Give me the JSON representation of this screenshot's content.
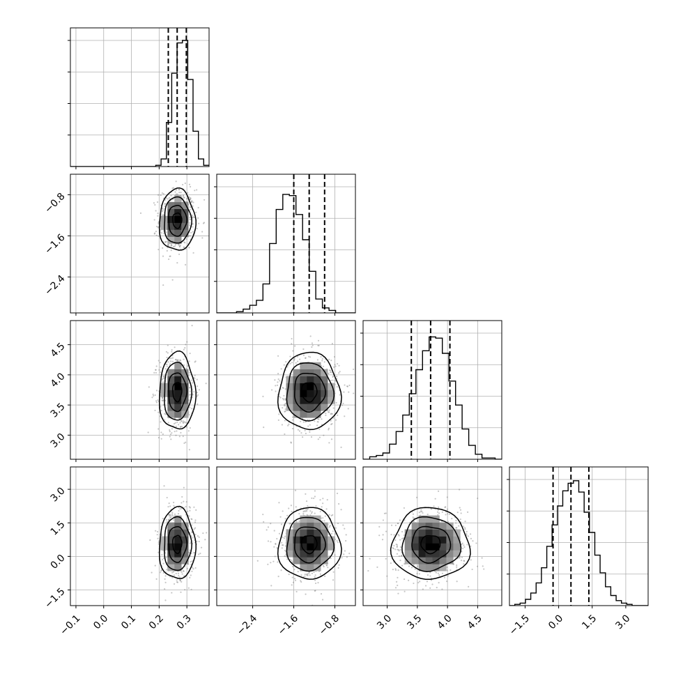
{
  "chart_data": {
    "type": "corner",
    "title": "",
    "grid": true,
    "colors": {
      "line": "#000000",
      "grid": "#b0b0b0",
      "scatter": "#808080",
      "density_max": "#000000"
    },
    "parameters": [
      {
        "index": 0,
        "range": [
          -0.12,
          0.38
        ],
        "ticks": [
          -0.1,
          0.0,
          0.1,
          0.2,
          0.3
        ],
        "tick_labels": [
          "−0.1",
          "0.0",
          "0.1",
          "0.2",
          "0.3"
        ],
        "median": 0.265,
        "q16": 0.233,
        "q84": 0.298
      },
      {
        "index": 1,
        "range": [
          -3.1,
          -0.4
        ],
        "ticks": [
          -2.4,
          -1.6,
          -0.8
        ],
        "tick_labels": [
          "−2.4",
          "−1.6",
          "−0.8"
        ],
        "median": -1.3,
        "q16": -1.6,
        "q84": -1.0
      },
      {
        "index": 2,
        "range": [
          2.6,
          4.9
        ],
        "ticks": [
          3.0,
          3.5,
          4.0,
          4.5
        ],
        "tick_labels": [
          "3.0",
          "3.5",
          "4.0",
          "4.5"
        ],
        "median": 3.72,
        "q16": 3.4,
        "q84": 4.04
      },
      {
        "index": 3,
        "range": [
          -2.2,
          4.0
        ],
        "ticks": [
          -1.5,
          0.0,
          1.5,
          3.0
        ],
        "tick_labels": [
          "−1.5",
          "0.0",
          "1.5",
          "3.0"
        ],
        "median": 0.55,
        "q16": -0.25,
        "q84": 1.35
      }
    ],
    "histograms": [
      {
        "param": 0,
        "bin_counts": [
          0,
          0,
          0,
          0,
          0,
          0,
          0,
          0,
          0,
          0,
          0,
          0,
          0,
          0,
          0,
          0,
          0.01,
          0.06,
          0.35,
          0.74,
          0.98,
          1.0,
          0.69,
          0.28,
          0.06,
          0.01
        ]
      },
      {
        "param": 1,
        "bin_counts": [
          0,
          0,
          0,
          0.01,
          0.03,
          0.06,
          0.1,
          0.23,
          0.55,
          0.82,
          0.94,
          0.93,
          0.78,
          0.58,
          0.33,
          0.11,
          0.04,
          0.02,
          0.0,
          0,
          0
        ]
      },
      {
        "param": 2,
        "bin_counts": [
          0,
          0.02,
          0.03,
          0.05,
          0.12,
          0.22,
          0.35,
          0.52,
          0.71,
          0.86,
          0.97,
          0.96,
          0.84,
          0.62,
          0.43,
          0.24,
          0.11,
          0.04,
          0.01,
          0.01,
          0
        ]
      },
      {
        "param": 3,
        "bin_counts": [
          0.0,
          0.01,
          0.02,
          0.05,
          0.1,
          0.18,
          0.3,
          0.47,
          0.64,
          0.79,
          0.91,
          0.97,
          0.99,
          0.9,
          0.74,
          0.58,
          0.4,
          0.26,
          0.15,
          0.08,
          0.04,
          0.02,
          0.01,
          0.0,
          0.0,
          0.0
        ]
      }
    ],
    "contour_levels": [
      "0.5σ",
      "1σ",
      "1.5σ",
      "2σ"
    ],
    "scatter_samples": 650
  }
}
